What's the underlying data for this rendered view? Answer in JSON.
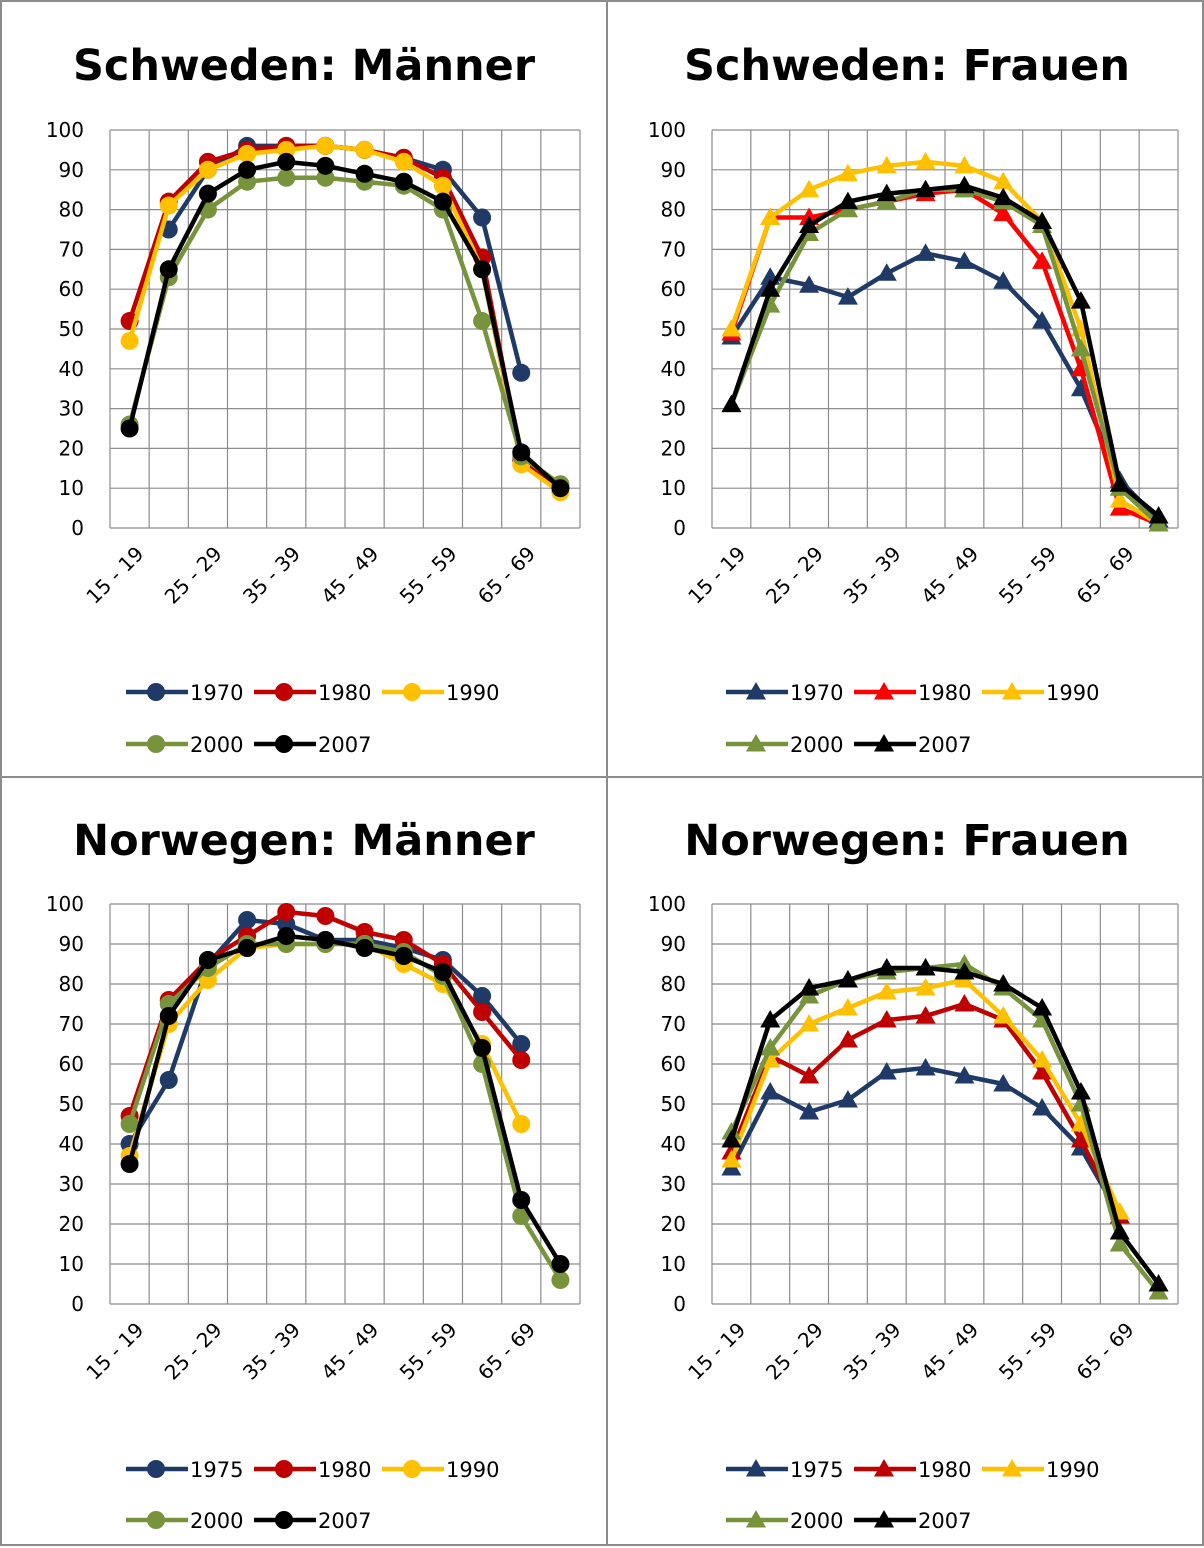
{
  "chart_data": [
    {
      "type": "line",
      "title": "Schweden: Männer",
      "marker": "circle",
      "ylim": [
        0,
        100
      ],
      "yticks": [
        0,
        10,
        20,
        30,
        40,
        50,
        60,
        70,
        80,
        90,
        100
      ],
      "x_tick_labels": [
        "15 - 19",
        "25 - 29",
        "35 - 39",
        "45 - 49",
        "55 - 59",
        "65 - 69"
      ],
      "grid": true,
      "legend_position": "bottom",
      "series": [
        {
          "name": "1970",
          "color": "#1f3a66",
          "values": [
            null,
            75,
            90,
            96,
            96,
            96,
            95,
            93,
            90,
            78,
            39,
            null
          ]
        },
        {
          "name": "1980",
          "color": "#c00000",
          "values": [
            52,
            82,
            92,
            95,
            96,
            96,
            95,
            93,
            88,
            68,
            17,
            10
          ]
        },
        {
          "name": "1990",
          "color": "#ffc000",
          "values": [
            47,
            81,
            90,
            94,
            95,
            96,
            95,
            92,
            86,
            65,
            16,
            9
          ]
        },
        {
          "name": "2000",
          "color": "#77933c",
          "values": [
            26,
            63,
            80,
            87,
            88,
            88,
            87,
            86,
            80,
            52,
            18,
            11
          ]
        },
        {
          "name": "2007",
          "color": "#000000",
          "values": [
            25,
            65,
            84,
            90,
            92,
            91,
            89,
            87,
            82,
            65,
            19,
            10
          ]
        }
      ]
    },
    {
      "type": "line",
      "title": "Schweden: Frauen",
      "marker": "triangle",
      "ylim": [
        0,
        100
      ],
      "yticks": [
        0,
        10,
        20,
        30,
        40,
        50,
        60,
        70,
        80,
        90,
        100
      ],
      "x_tick_labels": [
        "15 - 19",
        "25 - 29",
        "35 - 39",
        "45 - 49",
        "55 - 59",
        "65 - 69"
      ],
      "grid": true,
      "legend_position": "bottom",
      "series": [
        {
          "name": "1970",
          "color": "#1f3a66",
          "values": [
            48,
            63,
            61,
            58,
            64,
            69,
            67,
            62,
            52,
            35,
            12,
            2
          ]
        },
        {
          "name": "1980",
          "color": "#ff0000",
          "values": [
            49,
            78,
            78,
            80,
            82,
            84,
            85,
            79,
            67,
            40,
            5,
            1
          ]
        },
        {
          "name": "1990",
          "color": "#ffc000",
          "values": [
            50,
            78,
            85,
            89,
            91,
            92,
            91,
            87,
            77,
            50,
            7,
            1
          ]
        },
        {
          "name": "2000",
          "color": "#77933c",
          "values": [
            31,
            56,
            74,
            80,
            82,
            85,
            85,
            82,
            76,
            45,
            10,
            1
          ]
        },
        {
          "name": "2007",
          "color": "#000000",
          "values": [
            31,
            60,
            76,
            82,
            84,
            85,
            86,
            83,
            77,
            57,
            11,
            3
          ]
        }
      ]
    },
    {
      "type": "line",
      "title": "Norwegen: Männer",
      "marker": "circle",
      "ylim": [
        0,
        100
      ],
      "yticks": [
        0,
        10,
        20,
        30,
        40,
        50,
        60,
        70,
        80,
        90,
        100
      ],
      "x_tick_labels": [
        "15 - 19",
        "25 - 29",
        "35 - 39",
        "45 - 49",
        "55 - 59",
        "65 - 69"
      ],
      "grid": true,
      "legend_position": "bottom",
      "series": [
        {
          "name": "1975",
          "color": "#1f3a66",
          "values": [
            40,
            56,
            85,
            96,
            95,
            91,
            91,
            89,
            86,
            77,
            65,
            null
          ]
        },
        {
          "name": "1980",
          "color": "#c00000",
          "values": [
            47,
            76,
            86,
            92,
            98,
            97,
            93,
            91,
            85,
            73,
            61,
            null
          ]
        },
        {
          "name": "1990",
          "color": "#ffc000",
          "values": [
            37,
            70,
            81,
            89,
            90,
            90,
            90,
            85,
            80,
            65,
            45,
            null
          ]
        },
        {
          "name": "2000",
          "color": "#77933c",
          "values": [
            45,
            75,
            84,
            90,
            90,
            90,
            90,
            88,
            82,
            60,
            22,
            6
          ]
        },
        {
          "name": "2007",
          "color": "#000000",
          "values": [
            35,
            72,
            86,
            89,
            92,
            91,
            89,
            87,
            83,
            64,
            26,
            10
          ]
        }
      ]
    },
    {
      "type": "line",
      "title": "Norwegen: Frauen",
      "marker": "triangle",
      "ylim": [
        0,
        100
      ],
      "yticks": [
        0,
        10,
        20,
        30,
        40,
        50,
        60,
        70,
        80,
        90,
        100
      ],
      "x_tick_labels": [
        "15 - 19",
        "25 - 29",
        "35 - 39",
        "45 - 49",
        "55 - 59",
        "65 - 69"
      ],
      "grid": true,
      "legend_position": "bottom",
      "series": [
        {
          "name": "1975",
          "color": "#1f3a66",
          "values": [
            34,
            53,
            48,
            51,
            58,
            59,
            57,
            55,
            49,
            39,
            22,
            null
          ]
        },
        {
          "name": "1980",
          "color": "#c00000",
          "values": [
            38,
            62,
            57,
            66,
            71,
            72,
            75,
            71,
            58,
            41,
            22,
            null
          ]
        },
        {
          "name": "1990",
          "color": "#ffc000",
          "values": [
            36,
            61,
            70,
            74,
            78,
            79,
            81,
            72,
            61,
            45,
            23,
            null
          ]
        },
        {
          "name": "2000",
          "color": "#77933c",
          "values": [
            43,
            64,
            77,
            81,
            83,
            84,
            85,
            79,
            71,
            50,
            15,
            3
          ]
        },
        {
          "name": "2007",
          "color": "#000000",
          "values": [
            41,
            71,
            79,
            81,
            84,
            84,
            83,
            80,
            74,
            53,
            18,
            5
          ]
        }
      ]
    }
  ]
}
